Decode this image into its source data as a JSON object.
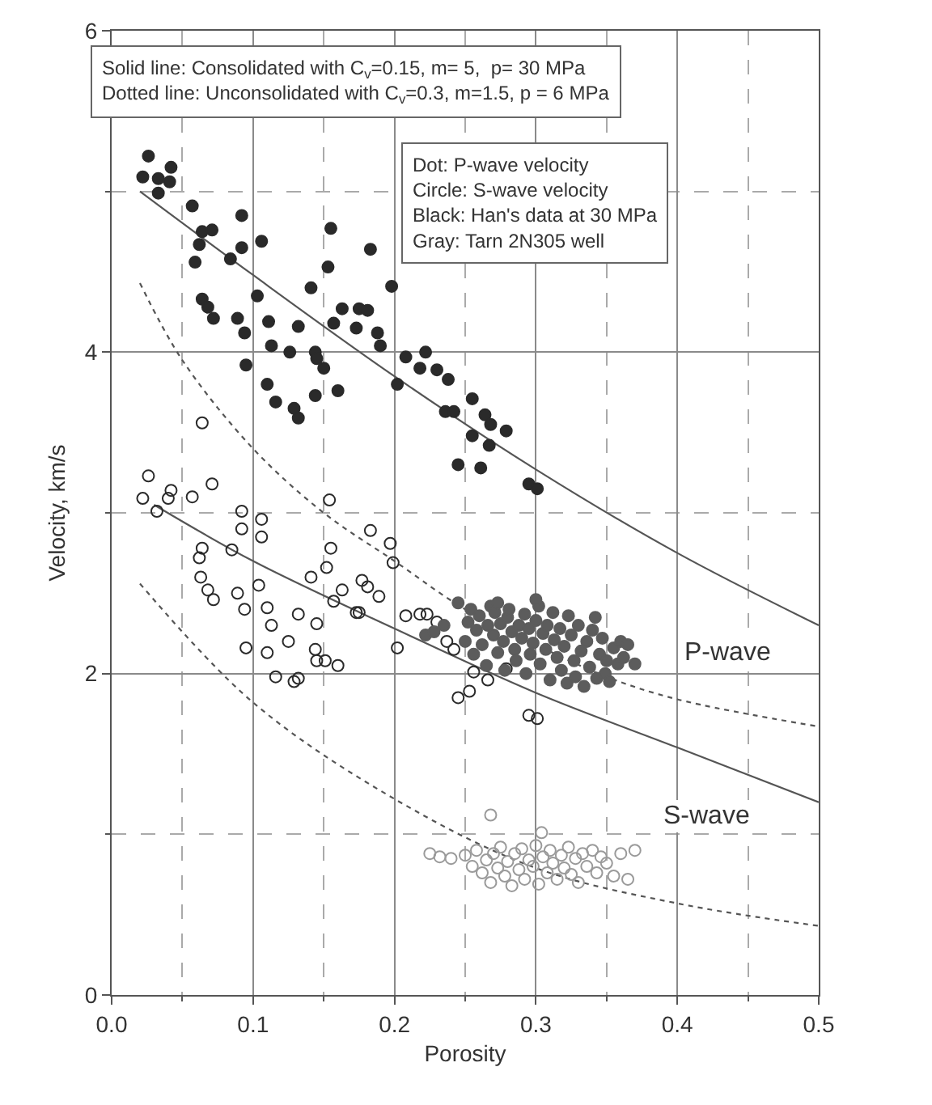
{
  "chart_data": {
    "type": "scatter",
    "xlabel": "Porosity",
    "ylabel": "Velocity, km/s",
    "xlim": [
      0,
      0.5
    ],
    "ylim": [
      0,
      6
    ],
    "xticks": [
      {
        "value": 0,
        "label": "0.0"
      },
      {
        "value": 0.05,
        "label": null
      },
      {
        "value": 0.1,
        "label": "0.1"
      },
      {
        "value": 0.15,
        "label": null
      },
      {
        "value": 0.2,
        "label": "0.2"
      },
      {
        "value": 0.25,
        "label": null
      },
      {
        "value": 0.3,
        "label": "0.3"
      },
      {
        "value": 0.35,
        "label": null
      },
      {
        "value": 0.4,
        "label": "0.4"
      },
      {
        "value": 0.45,
        "label": null
      },
      {
        "value": 0.5,
        "label": "0.5"
      }
    ],
    "yticks": [
      0,
      {
        "value": 1,
        "label": null
      },
      2,
      {
        "value": 3,
        "label": null
      },
      4,
      {
        "value": 5,
        "label": null
      },
      6
    ],
    "grid": true,
    "annotations": [
      "Solid line: Consolidated with C$_{v}$=0.15, m= 5,  p= 30 MPa\nDotted line: Unconsolidated with C$_{v}$=0.3, m=1.5, p = 6 MPa",
      "Dot: P-wave velocity\nCircle: S-wave velocity\nBlack: Han's data at 30 MPa\nGray: Tarn 2N305 well",
      "P-wave",
      "S-wave"
    ],
    "series": [
      {
        "type": "line",
        "color": "#555555",
        "line_style": "solid",
        "x": [
          0.02,
          0.1,
          0.2,
          0.3,
          0.4,
          0.5
        ],
        "values": [
          5.0,
          4.48,
          3.85,
          3.27,
          2.75,
          2.3
        ]
      },
      {
        "type": "line",
        "color": "#555555",
        "line_style": "dotted",
        "x": [
          0.02,
          0.05,
          0.1,
          0.15,
          0.2,
          0.25,
          0.3,
          0.35,
          0.4,
          0.5
        ],
        "values": [
          4.43,
          3.95,
          3.4,
          3.0,
          2.7,
          2.4,
          2.18,
          1.98,
          1.84,
          1.67
        ]
      },
      {
        "type": "line",
        "color": "#555555",
        "line_style": "solid",
        "x": [
          0.03,
          0.1,
          0.2,
          0.3,
          0.4,
          0.5
        ],
        "values": [
          3.05,
          2.7,
          2.28,
          1.88,
          1.54,
          1.2
        ]
      },
      {
        "type": "line",
        "color": "#555555",
        "line_style": "dotted",
        "x": [
          0.02,
          0.1,
          0.2,
          0.3,
          0.4,
          0.5
        ],
        "values": [
          2.56,
          1.82,
          1.22,
          0.79,
          0.57,
          0.43
        ]
      },
      {
        "color": "#2a2a2a",
        "marker": "circle",
        "x": [
          0.026,
          0.022,
          0.033,
          0.041,
          0.042,
          0.033,
          0.057,
          0.092,
          0.064,
          0.071,
          0.062,
          0.059,
          0.084,
          0.092,
          0.106,
          0.155,
          0.153,
          0.183,
          0.198,
          0.141,
          0.064,
          0.068,
          0.072,
          0.089,
          0.094,
          0.103,
          0.111,
          0.113,
          0.126,
          0.132,
          0.163,
          0.157,
          0.173,
          0.175,
          0.181,
          0.188,
          0.19,
          0.144,
          0.145,
          0.15,
          0.095,
          0.11,
          0.116,
          0.129,
          0.132,
          0.144,
          0.16,
          0.202,
          0.208,
          0.218,
          0.222,
          0.23,
          0.238,
          0.236,
          0.242,
          0.255,
          0.264,
          0.268,
          0.279,
          0.255,
          0.267,
          0.245,
          0.261,
          0.295,
          0.301
        ],
        "values": [
          5.22,
          5.09,
          5.08,
          5.06,
          5.15,
          4.99,
          4.91,
          4.85,
          4.75,
          4.76,
          4.67,
          4.56,
          4.58,
          4.65,
          4.69,
          4.77,
          4.53,
          4.64,
          4.41,
          4.4,
          4.33,
          4.28,
          4.21,
          4.21,
          4.12,
          4.35,
          4.19,
          4.04,
          4.0,
          4.16,
          4.27,
          4.18,
          4.15,
          4.27,
          4.26,
          4.12,
          4.04,
          4.0,
          3.96,
          3.9,
          3.92,
          3.8,
          3.69,
          3.65,
          3.59,
          3.73,
          3.76,
          3.8,
          3.97,
          3.9,
          4.0,
          3.89,
          3.83,
          3.63,
          3.63,
          3.71,
          3.61,
          3.55,
          3.51,
          3.48,
          3.42,
          3.3,
          3.28,
          3.18,
          3.15
        ]
      },
      {
        "color": "#2a2a2a",
        "marker": "circle-open",
        "x": [
          0.064,
          0.026,
          0.071,
          0.022,
          0.032,
          0.04,
          0.042,
          0.057,
          0.092,
          0.092,
          0.106,
          0.106,
          0.154,
          0.183,
          0.197,
          0.155,
          0.064,
          0.085,
          0.062,
          0.063,
          0.068,
          0.072,
          0.089,
          0.094,
          0.104,
          0.11,
          0.113,
          0.095,
          0.11,
          0.116,
          0.129,
          0.132,
          0.125,
          0.132,
          0.141,
          0.145,
          0.144,
          0.145,
          0.151,
          0.16,
          0.152,
          0.163,
          0.157,
          0.173,
          0.175,
          0.177,
          0.181,
          0.189,
          0.199,
          0.202,
          0.208,
          0.218,
          0.223,
          0.23,
          0.237,
          0.242,
          0.256,
          0.253,
          0.245,
          0.266,
          0.279,
          0.295,
          0.301
        ],
        "values": [
          3.56,
          3.23,
          3.18,
          3.09,
          3.01,
          3.09,
          3.14,
          3.1,
          3.01,
          2.9,
          2.96,
          2.85,
          3.08,
          2.89,
          2.81,
          2.78,
          2.78,
          2.77,
          2.72,
          2.6,
          2.52,
          2.46,
          2.5,
          2.4,
          2.55,
          2.41,
          2.3,
          2.16,
          2.13,
          1.98,
          1.95,
          1.97,
          2.2,
          2.37,
          2.6,
          2.31,
          2.15,
          2.08,
          2.08,
          2.05,
          2.66,
          2.52,
          2.45,
          2.38,
          2.38,
          2.58,
          2.54,
          2.48,
          2.69,
          2.16,
          2.36,
          2.37,
          2.37,
          2.32,
          2.2,
          2.15,
          2.01,
          1.89,
          1.85,
          1.96,
          2.03,
          1.74,
          1.72
        ]
      },
      {
        "color": "#5c5c5c",
        "marker": "circle",
        "x": [
          0.222,
          0.228,
          0.235,
          0.245,
          0.25,
          0.252,
          0.254,
          0.256,
          0.258,
          0.26,
          0.262,
          0.265,
          0.266,
          0.268,
          0.27,
          0.271,
          0.273,
          0.275,
          0.277,
          0.278,
          0.28,
          0.281,
          0.283,
          0.285,
          0.286,
          0.288,
          0.29,
          0.292,
          0.293,
          0.295,
          0.296,
          0.298,
          0.3,
          0.302,
          0.303,
          0.305,
          0.307,
          0.308,
          0.31,
          0.312,
          0.313,
          0.315,
          0.317,
          0.318,
          0.32,
          0.322,
          0.323,
          0.325,
          0.327,
          0.328,
          0.33,
          0.332,
          0.334,
          0.336,
          0.338,
          0.34,
          0.342,
          0.343,
          0.345,
          0.347,
          0.349,
          0.35,
          0.352,
          0.355,
          0.358,
          0.36,
          0.362,
          0.365,
          0.37,
          0.273,
          0.3
        ],
        "values": [
          2.24,
          2.26,
          2.3,
          2.44,
          2.2,
          2.32,
          2.4,
          2.12,
          2.27,
          2.36,
          2.18,
          2.05,
          2.3,
          2.42,
          2.24,
          2.38,
          2.13,
          2.31,
          2.2,
          2.02,
          2.35,
          2.4,
          2.26,
          2.15,
          2.08,
          2.3,
          2.22,
          2.37,
          2.0,
          2.28,
          2.12,
          2.19,
          2.33,
          2.42,
          2.06,
          2.25,
          2.15,
          2.3,
          1.96,
          2.38,
          2.21,
          2.1,
          2.28,
          2.02,
          2.17,
          1.94,
          2.36,
          2.24,
          2.08,
          1.98,
          2.3,
          2.14,
          1.92,
          2.2,
          2.04,
          2.27,
          2.35,
          1.97,
          2.12,
          2.22,
          2.0,
          2.08,
          1.95,
          2.16,
          2.06,
          2.2,
          2.1,
          2.18,
          2.06,
          2.44,
          2.46
        ]
      },
      {
        "color": "#9a9a9a",
        "marker": "circle-open",
        "x": [
          0.225,
          0.232,
          0.24,
          0.25,
          0.255,
          0.258,
          0.262,
          0.265,
          0.268,
          0.27,
          0.273,
          0.275,
          0.278,
          0.28,
          0.283,
          0.285,
          0.288,
          0.29,
          0.292,
          0.295,
          0.298,
          0.3,
          0.302,
          0.304,
          0.305,
          0.308,
          0.31,
          0.312,
          0.315,
          0.318,
          0.32,
          0.323,
          0.325,
          0.328,
          0.33,
          0.333,
          0.336,
          0.34,
          0.343,
          0.346,
          0.35,
          0.355,
          0.36,
          0.365,
          0.37,
          0.268
        ],
        "values": [
          0.88,
          0.86,
          0.85,
          0.87,
          0.8,
          0.9,
          0.76,
          0.84,
          0.7,
          0.88,
          0.79,
          0.92,
          0.74,
          0.83,
          0.68,
          0.88,
          0.78,
          0.91,
          0.72,
          0.84,
          0.8,
          0.93,
          0.69,
          1.01,
          0.86,
          0.76,
          0.9,
          0.82,
          0.72,
          0.87,
          0.79,
          0.92,
          0.75,
          0.85,
          0.7,
          0.88,
          0.8,
          0.9,
          0.76,
          0.86,
          0.82,
          0.74,
          0.88,
          0.72,
          0.9,
          1.12
        ]
      }
    ]
  }
}
